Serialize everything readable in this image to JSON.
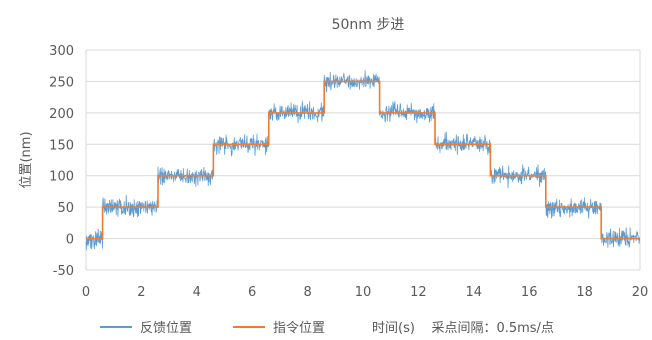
{
  "chart_data": {
    "type": "line",
    "title": "50nm 步进",
    "xlabel": "",
    "ylabel": "位置(nm)",
    "xlim": [
      0,
      20
    ],
    "ylim": [
      -50,
      300
    ],
    "xticks": [
      0,
      2,
      4,
      6,
      8,
      10,
      12,
      14,
      16,
      18,
      20
    ],
    "yticks": [
      -50,
      0,
      50,
      100,
      150,
      200,
      250,
      300
    ],
    "grid": "horizontal",
    "legend_position": "bottom",
    "annotation": "时间(s)    采点间隔：0.5ms/点",
    "series": [
      {
        "name": "反馈位置",
        "color": "#5b9bd5",
        "style": "noisy",
        "noise_amplitude_nm": 12,
        "steps": [
          {
            "x_start": 0,
            "x_end": 0.6,
            "y": 0
          },
          {
            "x_start": 0.6,
            "x_end": 2.6,
            "y": 50
          },
          {
            "x_start": 2.6,
            "x_end": 4.6,
            "y": 100
          },
          {
            "x_start": 4.6,
            "x_end": 6.6,
            "y": 150
          },
          {
            "x_start": 6.6,
            "x_end": 8.6,
            "y": 200
          },
          {
            "x_start": 8.6,
            "x_end": 10.6,
            "y": 250
          },
          {
            "x_start": 10.6,
            "x_end": 12.6,
            "y": 200
          },
          {
            "x_start": 12.6,
            "x_end": 14.6,
            "y": 150
          },
          {
            "x_start": 14.6,
            "x_end": 16.6,
            "y": 100
          },
          {
            "x_start": 16.6,
            "x_end": 18.6,
            "y": 50
          },
          {
            "x_start": 18.6,
            "x_end": 20,
            "y": 0
          }
        ]
      },
      {
        "name": "指令位置",
        "color": "#ed7d31",
        "style": "step",
        "points": [
          [
            0,
            0
          ],
          [
            0.6,
            0
          ],
          [
            0.6,
            50
          ],
          [
            2.6,
            50
          ],
          [
            2.6,
            100
          ],
          [
            4.6,
            100
          ],
          [
            4.6,
            150
          ],
          [
            6.6,
            150
          ],
          [
            6.6,
            200
          ],
          [
            8.6,
            200
          ],
          [
            8.6,
            250
          ],
          [
            10.6,
            250
          ],
          [
            10.6,
            200
          ],
          [
            12.6,
            200
          ],
          [
            12.6,
            150
          ],
          [
            14.6,
            150
          ],
          [
            14.6,
            100
          ],
          [
            16.6,
            100
          ],
          [
            16.6,
            50
          ],
          [
            18.6,
            50
          ],
          [
            18.6,
            0
          ],
          [
            20,
            0
          ]
        ]
      }
    ]
  }
}
